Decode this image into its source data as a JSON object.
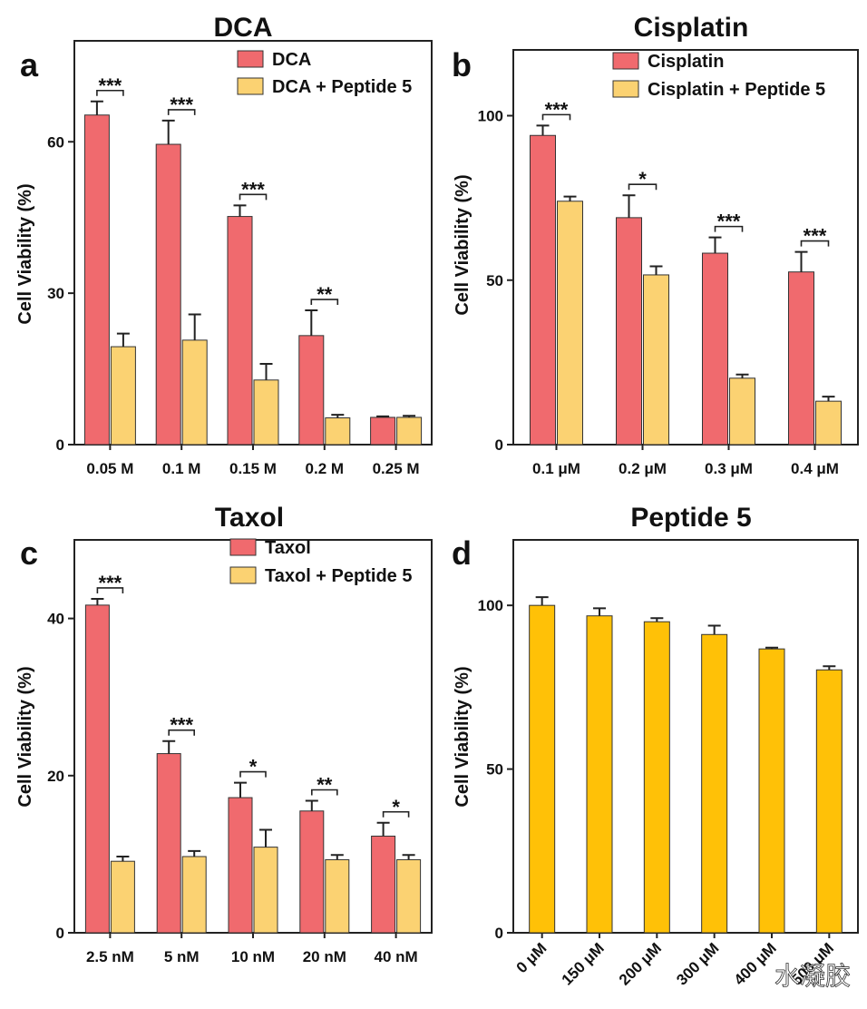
{
  "chart_data": [
    {
      "type": "bar",
      "panel_label": "a",
      "title": "DCA",
      "xlabel": "",
      "ylabel": "Cell Viability (%)",
      "ylim": [
        0,
        80
      ],
      "yticks": [
        "0",
        "30",
        "60"
      ],
      "ytick_values": [
        0,
        30,
        60
      ],
      "categories": [
        "0.05 M",
        "0.1 M",
        "0.15 M",
        "0.2 M",
        "0.25 M"
      ],
      "series": [
        {
          "name": "DCA",
          "color": "#F06A6E",
          "values": [
            65.3,
            59.5,
            45.2,
            21.6,
            5.4
          ],
          "errors": [
            2.7,
            4.7,
            2.2,
            5.0,
            0.2
          ]
        },
        {
          "name": "DCA + Peptide 5",
          "color": "#FBD272",
          "values": [
            19.4,
            20.7,
            12.8,
            5.3,
            5.4
          ],
          "errors": [
            2.6,
            5.1,
            3.2,
            0.6,
            0.3
          ]
        }
      ],
      "significance": [
        "***",
        "***",
        "***",
        "**",
        ""
      ]
    },
    {
      "type": "bar",
      "panel_label": "b",
      "title": "Cisplatin",
      "xlabel": "",
      "ylabel": "Cell Viability (%)",
      "ylim": [
        0,
        120
      ],
      "yticks": [
        "0",
        "50",
        "100"
      ],
      "ytick_values": [
        0,
        50,
        100
      ],
      "categories": [
        "0.1 μM",
        "0.2 μM",
        "0.3 μM",
        "0.4 μM"
      ],
      "series": [
        {
          "name": "Cisplatin",
          "color": "#F06A6E",
          "values": [
            94,
            69,
            58.2,
            52.5
          ],
          "errors": [
            3.0,
            6.8,
            4.8,
            6.1
          ]
        },
        {
          "name": "Cisplatin + Peptide 5",
          "color": "#FBD272",
          "values": [
            74,
            51.6,
            20.2,
            13.2
          ],
          "errors": [
            1.4,
            2.6,
            1.1,
            1.4
          ]
        }
      ],
      "significance": [
        "***",
        "*",
        "***",
        "***"
      ]
    },
    {
      "type": "bar",
      "panel_label": "c",
      "title": "Taxol",
      "xlabel": "",
      "ylabel": "Cell Viability (%)",
      "ylim": [
        0,
        50
      ],
      "yticks": [
        "0",
        "20",
        "40"
      ],
      "ytick_values": [
        0,
        20,
        40
      ],
      "categories": [
        "2.5 nM",
        "5 nM",
        "10 nM",
        "20 nM",
        "40 nM"
      ],
      "series": [
        {
          "name": "Taxol",
          "color": "#F06A6E",
          "values": [
            41.7,
            22.8,
            17.2,
            15.5,
            12.3
          ],
          "errors": [
            0.8,
            1.6,
            1.9,
            1.3,
            1.7
          ]
        },
        {
          "name": "Taxol + Peptide 5",
          "color": "#FBD272",
          "values": [
            9.1,
            9.7,
            10.9,
            9.3,
            9.3
          ],
          "errors": [
            0.6,
            0.7,
            2.2,
            0.6,
            0.6
          ]
        }
      ],
      "significance": [
        "***",
        "***",
        "*",
        "**",
        "*"
      ]
    },
    {
      "type": "bar",
      "panel_label": "d",
      "title": "Peptide 5",
      "xlabel": "",
      "ylabel": "Cell Viability (%)",
      "ylim": [
        0,
        120
      ],
      "yticks": [
        "0",
        "50",
        "100"
      ],
      "ytick_values": [
        0,
        50,
        100
      ],
      "categories": [
        "0 μM",
        "150 μM",
        "200 μM",
        "300 μM",
        "400 μM",
        "500 μM"
      ],
      "series": [
        {
          "name": "Peptide 5",
          "color": "#FFC107",
          "values": [
            100,
            96.8,
            95,
            91.1,
            86.7,
            80.3
          ],
          "errors": [
            2.5,
            2.3,
            1.1,
            2.7,
            0.4,
            1.1
          ]
        }
      ],
      "significance": []
    }
  ],
  "watermark": "水凝胶"
}
